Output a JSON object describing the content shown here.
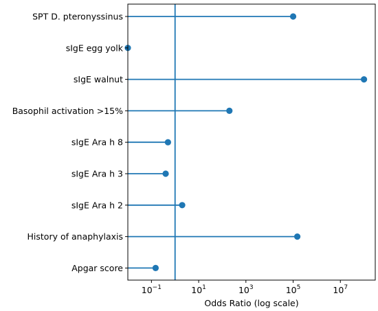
{
  "colors": {
    "series": "#1f77b4",
    "axis": "#000000"
  },
  "chart_data": {
    "type": "lollipop",
    "xscale": "log",
    "xlabel": "Odds Ratio (log scale)",
    "xlim": [
      0.01,
      300000000.0
    ],
    "reference_line": 1,
    "stem_start": 0.01,
    "xticks": [
      {
        "value": 0.1,
        "base": "10",
        "exp": "−1"
      },
      {
        "value": 10,
        "base": "10",
        "exp": "1"
      },
      {
        "value": 1000,
        "base": "10",
        "exp": "3"
      },
      {
        "value": 100000,
        "base": "10",
        "exp": "5"
      },
      {
        "value": 10000000,
        "base": "10",
        "exp": "7"
      }
    ],
    "categories": [
      "SPT D. pteronyssinus",
      "sIgE egg yolk",
      "sIgE walnut",
      "Basophil activation >15%",
      "sIgE Ara h 8",
      "sIgE Ara h 3",
      "sIgE Ara h 2",
      "History of anaphylaxis",
      "Apgar score"
    ],
    "values": [
      100000,
      0.01,
      100000000,
      200,
      0.5,
      0.4,
      2,
      150000,
      0.15
    ]
  }
}
